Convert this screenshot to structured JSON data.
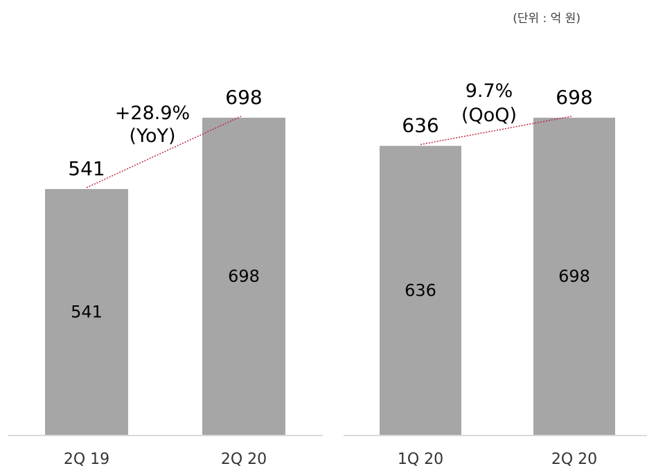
{
  "unit_label": "(단위 : 억 원)",
  "chart_data": [
    {
      "type": "bar",
      "categories": [
        "2Q 19",
        "2Q 20"
      ],
      "values": [
        541,
        698
      ],
      "ylim": [
        0,
        720
      ],
      "annotation": [
        "+28.9%",
        "(YoY)"
      ],
      "colors": {
        "bar": "#a6a6a6",
        "trend": "#c0304a",
        "axis": "#d9d9d9"
      }
    },
    {
      "type": "bar",
      "categories": [
        "1Q 20",
        "2Q 20"
      ],
      "values": [
        636,
        698
      ],
      "ylim": [
        0,
        720
      ],
      "annotation": [
        "9.7%",
        "(QoQ)"
      ],
      "colors": {
        "bar": "#a6a6a6",
        "trend": "#c0304a",
        "axis": "#d9d9d9"
      }
    }
  ]
}
